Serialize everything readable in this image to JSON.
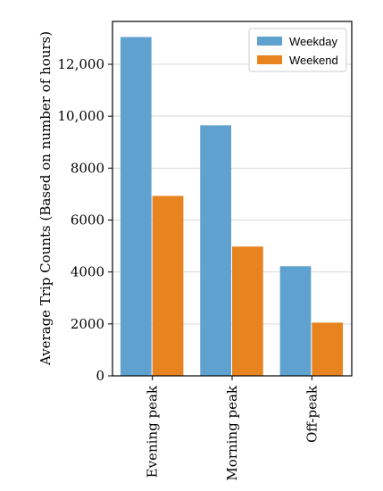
{
  "chart_data": {
    "type": "bar",
    "categories": [
      "Evening peak",
      "Morning peak",
      "Off-peak"
    ],
    "series": [
      {
        "name": "Weekday",
        "color": "#5fa2d0",
        "values": [
          13050,
          9650,
          4220
        ]
      },
      {
        "name": "Weekend",
        "color": "#e8841f",
        "values": [
          6930,
          4980,
          2050
        ]
      }
    ],
    "title": "",
    "xlabel": "",
    "ylabel": "Average Trip Counts (Based on number of hours)",
    "ylim": [
      0,
      13650
    ],
    "yticks": [
      0,
      2000,
      4000,
      6000,
      8000,
      10000,
      12000
    ],
    "ytick_labels": [
      "0",
      "2000",
      "4000",
      "6000",
      "8000",
      "10,000",
      "12,000"
    ],
    "grid": "horizontal",
    "legend_position": "top-right"
  }
}
